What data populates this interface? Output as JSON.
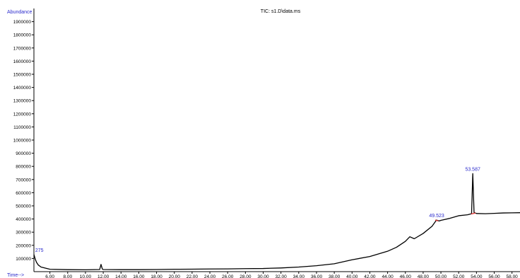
{
  "chart_data": {
    "type": "line",
    "title": "TIC: s1.D\\data.ms",
    "ylabel": "Abundance",
    "xlabel": "Time-->",
    "xlim": [
      4.2,
      58.9
    ],
    "ylim": [
      0,
      2000000
    ],
    "y_ticks": [
      100000,
      200000,
      300000,
      400000,
      500000,
      600000,
      700000,
      800000,
      900000,
      1000000,
      1100000,
      1200000,
      1300000,
      1400000,
      1500000,
      1600000,
      1700000,
      1800000,
      1900000
    ],
    "y_tick_labels": [
      "100000",
      "200000",
      "300000",
      "400000",
      "500000",
      "600000",
      "700000",
      "800000",
      "900000",
      "1000000",
      "1100000",
      "1200000",
      "1300000",
      "1400000",
      "1500000",
      "1600000",
      "1700000",
      "1800000",
      "1900000"
    ],
    "x_ticks": [
      6,
      8,
      10,
      12,
      14,
      16,
      18,
      20,
      22,
      24,
      26,
      28,
      30,
      32,
      34,
      36,
      38,
      40,
      42,
      44,
      46,
      48,
      50,
      52,
      54,
      56,
      58
    ],
    "x_tick_labels": [
      "6.00",
      "8.00",
      "10.00",
      "12.00",
      "14.00",
      "16.00",
      "18.00",
      "20.00",
      "22.00",
      "24.00",
      "26.00",
      "28.00",
      "30.00",
      "32.00",
      "34.00",
      "36.00",
      "38.00",
      "40.00",
      "42.00",
      "44.00",
      "46.00",
      "48.00",
      "50.00",
      "52.00",
      "54.00",
      "56.00",
      "58.00"
    ],
    "grid": false,
    "series": [
      {
        "color": "#000000",
        "x": [
          4.2,
          4.35,
          4.5,
          4.7,
          5.0,
          6.0,
          8.0,
          10.0,
          11.6,
          11.75,
          11.9,
          12.0,
          14.0,
          16.0,
          18.0,
          20.0,
          22.0,
          24.0,
          26.0,
          28.0,
          30.0,
          32.0,
          34.0,
          36.0,
          38.0,
          40.0,
          42.0,
          44.0,
          45.0,
          46.0,
          46.5,
          47.0,
          48.0,
          49.0,
          49.5,
          49.8,
          50.0,
          51.0,
          52.0,
          53.0,
          53.45,
          53.587,
          53.73,
          54.0,
          55.0,
          56.0,
          57.0,
          58.0,
          58.9
        ],
        "y": [
          130000,
          95000,
          70000,
          50000,
          35000,
          18000,
          15000,
          14000,
          16000,
          55000,
          20000,
          16000,
          15000,
          15000,
          16000,
          18000,
          19000,
          20000,
          21000,
          23000,
          24000,
          28000,
          35000,
          45000,
          60000,
          90000,
          115000,
          155000,
          185000,
          230000,
          265000,
          250000,
          290000,
          345000,
          392000,
          385000,
          390000,
          405000,
          425000,
          432000,
          440000,
          745000,
          450000,
          442000,
          440000,
          443000,
          446000,
          447000,
          448000
        ]
      }
    ],
    "annotations": [
      {
        "text": "275",
        "x": 4.35,
        "y": 130000,
        "color": "#2a2acc"
      },
      {
        "text": "49.523",
        "x": 49.523,
        "y": 392000,
        "color": "#2a2acc"
      },
      {
        "text": "53.587",
        "x": 53.587,
        "y": 745000,
        "color": "#2a2acc"
      }
    ],
    "integration_baselines": [
      {
        "x": [
          49.35,
          49.7
        ],
        "y": [
          392000,
          385000
        ],
        "color": "#e23b3b"
      },
      {
        "x": [
          53.4,
          53.9
        ],
        "y": [
          438000,
          446000
        ],
        "color": "#e23b3b"
      }
    ],
    "colors": {
      "axis_title": "#2a2acc",
      "label": "#2a2acc",
      "trace": "#000000",
      "baseline": "#e23b3b"
    }
  }
}
